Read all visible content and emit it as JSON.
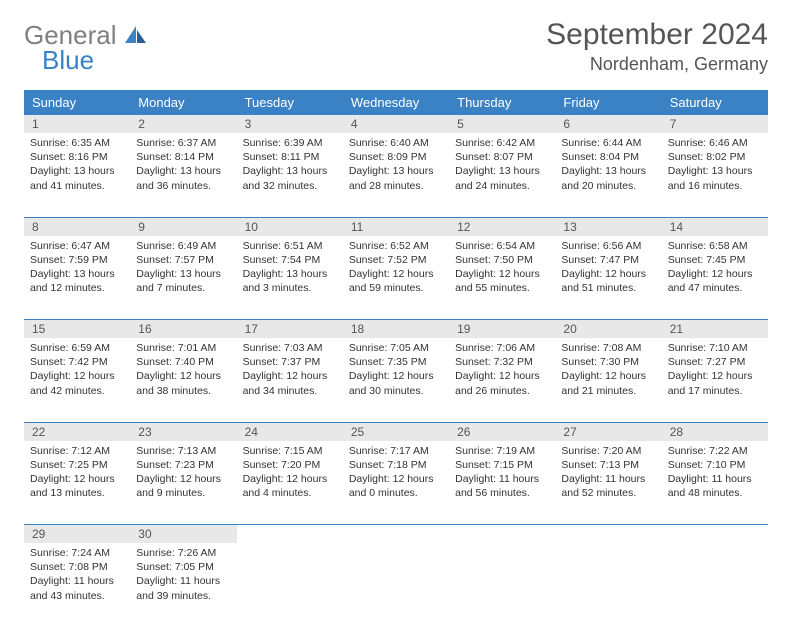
{
  "logo": {
    "word1": "General",
    "word2": "Blue"
  },
  "title": "September 2024",
  "location": "Nordenham, Germany",
  "columns": [
    "Sunday",
    "Monday",
    "Tuesday",
    "Wednesday",
    "Thursday",
    "Friday",
    "Saturday"
  ],
  "colors": {
    "header_bg": "#3b82c4",
    "header_fg": "#ffffff",
    "daynum_bg": "#e8e8e8",
    "row_divider": "#3b82c4",
    "text": "#333333",
    "title_text": "#555555",
    "logo_gray": "#808080",
    "logo_blue": "#3b82c4"
  },
  "weeks": [
    [
      {
        "n": "1",
        "sr": "6:35 AM",
        "ss": "8:16 PM",
        "dl": "13 hours and 41 minutes."
      },
      {
        "n": "2",
        "sr": "6:37 AM",
        "ss": "8:14 PM",
        "dl": "13 hours and 36 minutes."
      },
      {
        "n": "3",
        "sr": "6:39 AM",
        "ss": "8:11 PM",
        "dl": "13 hours and 32 minutes."
      },
      {
        "n": "4",
        "sr": "6:40 AM",
        "ss": "8:09 PM",
        "dl": "13 hours and 28 minutes."
      },
      {
        "n": "5",
        "sr": "6:42 AM",
        "ss": "8:07 PM",
        "dl": "13 hours and 24 minutes."
      },
      {
        "n": "6",
        "sr": "6:44 AM",
        "ss": "8:04 PM",
        "dl": "13 hours and 20 minutes."
      },
      {
        "n": "7",
        "sr": "6:46 AM",
        "ss": "8:02 PM",
        "dl": "13 hours and 16 minutes."
      }
    ],
    [
      {
        "n": "8",
        "sr": "6:47 AM",
        "ss": "7:59 PM",
        "dl": "13 hours and 12 minutes."
      },
      {
        "n": "9",
        "sr": "6:49 AM",
        "ss": "7:57 PM",
        "dl": "13 hours and 7 minutes."
      },
      {
        "n": "10",
        "sr": "6:51 AM",
        "ss": "7:54 PM",
        "dl": "13 hours and 3 minutes."
      },
      {
        "n": "11",
        "sr": "6:52 AM",
        "ss": "7:52 PM",
        "dl": "12 hours and 59 minutes."
      },
      {
        "n": "12",
        "sr": "6:54 AM",
        "ss": "7:50 PM",
        "dl": "12 hours and 55 minutes."
      },
      {
        "n": "13",
        "sr": "6:56 AM",
        "ss": "7:47 PM",
        "dl": "12 hours and 51 minutes."
      },
      {
        "n": "14",
        "sr": "6:58 AM",
        "ss": "7:45 PM",
        "dl": "12 hours and 47 minutes."
      }
    ],
    [
      {
        "n": "15",
        "sr": "6:59 AM",
        "ss": "7:42 PM",
        "dl": "12 hours and 42 minutes."
      },
      {
        "n": "16",
        "sr": "7:01 AM",
        "ss": "7:40 PM",
        "dl": "12 hours and 38 minutes."
      },
      {
        "n": "17",
        "sr": "7:03 AM",
        "ss": "7:37 PM",
        "dl": "12 hours and 34 minutes."
      },
      {
        "n": "18",
        "sr": "7:05 AM",
        "ss": "7:35 PM",
        "dl": "12 hours and 30 minutes."
      },
      {
        "n": "19",
        "sr": "7:06 AM",
        "ss": "7:32 PM",
        "dl": "12 hours and 26 minutes."
      },
      {
        "n": "20",
        "sr": "7:08 AM",
        "ss": "7:30 PM",
        "dl": "12 hours and 21 minutes."
      },
      {
        "n": "21",
        "sr": "7:10 AM",
        "ss": "7:27 PM",
        "dl": "12 hours and 17 minutes."
      }
    ],
    [
      {
        "n": "22",
        "sr": "7:12 AM",
        "ss": "7:25 PM",
        "dl": "12 hours and 13 minutes."
      },
      {
        "n": "23",
        "sr": "7:13 AM",
        "ss": "7:23 PM",
        "dl": "12 hours and 9 minutes."
      },
      {
        "n": "24",
        "sr": "7:15 AM",
        "ss": "7:20 PM",
        "dl": "12 hours and 4 minutes."
      },
      {
        "n": "25",
        "sr": "7:17 AM",
        "ss": "7:18 PM",
        "dl": "12 hours and 0 minutes."
      },
      {
        "n": "26",
        "sr": "7:19 AM",
        "ss": "7:15 PM",
        "dl": "11 hours and 56 minutes."
      },
      {
        "n": "27",
        "sr": "7:20 AM",
        "ss": "7:13 PM",
        "dl": "11 hours and 52 minutes."
      },
      {
        "n": "28",
        "sr": "7:22 AM",
        "ss": "7:10 PM",
        "dl": "11 hours and 48 minutes."
      }
    ],
    [
      {
        "n": "29",
        "sr": "7:24 AM",
        "ss": "7:08 PM",
        "dl": "11 hours and 43 minutes."
      },
      {
        "n": "30",
        "sr": "7:26 AM",
        "ss": "7:05 PM",
        "dl": "11 hours and 39 minutes."
      },
      null,
      null,
      null,
      null,
      null
    ]
  ],
  "labels": {
    "sunrise": "Sunrise:",
    "sunset": "Sunset:",
    "daylight": "Daylight:"
  }
}
